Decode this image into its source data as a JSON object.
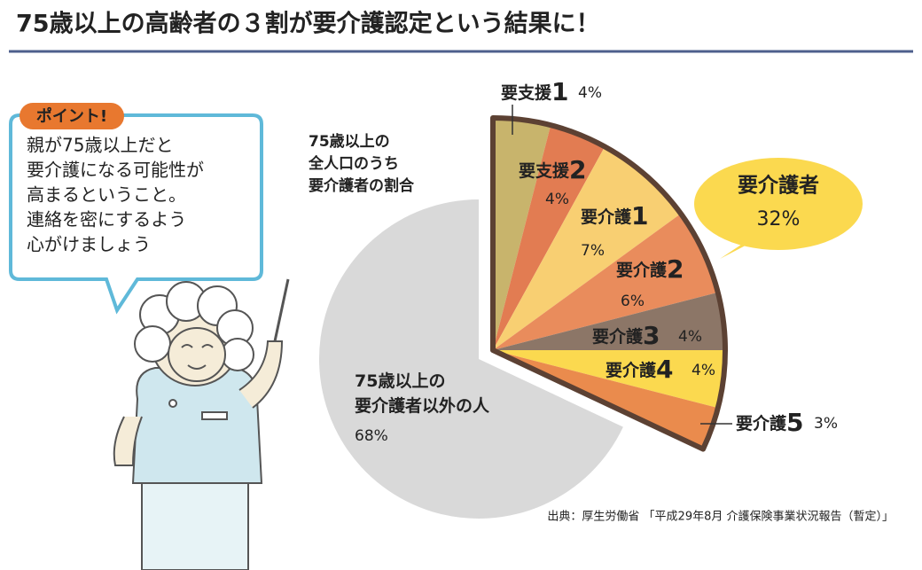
{
  "chart_data": {
    "type": "pie",
    "title": "75歳以上の高齢者の３割が要介護認定という結果に！",
    "caption": [
      "75歳以上の",
      "全人口のうち",
      "要介護者の割合"
    ],
    "categories": [
      "要支援1",
      "要支援2",
      "要介護1",
      "要介護2",
      "要介護3",
      "要介護4",
      "要介護5",
      "75歳以上の\n要介護者以外の人"
    ],
    "values": [
      4,
      4,
      7,
      6,
      4,
      4,
      3,
      68
    ],
    "value_labels": [
      "4%",
      "4%",
      "7%",
      "6%",
      "4%",
      "4%",
      "3%",
      "68%"
    ],
    "colors": [
      "#c8b46c",
      "#e27c52",
      "#f8cf72",
      "#e98c5c",
      "#8c7667",
      "#fbd94f",
      "#ea8b4d",
      "#d9d9d9"
    ],
    "group": {
      "name": "要介護者",
      "value": 32,
      "value_label": "32%"
    },
    "source": "出典：厚生労働省 「平成29年8月 介護保険事業状況報告（暫定）」"
  },
  "callout": {
    "badge": "ポイント!",
    "lines": [
      "親が75歳以上だと",
      "要介護になる可能性が",
      "高まるということ。",
      "連絡を密にするよう",
      "心がけましょう"
    ]
  }
}
